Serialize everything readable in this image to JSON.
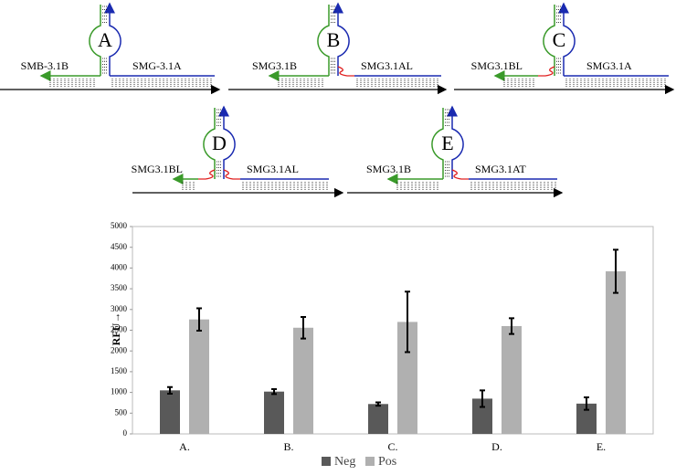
{
  "diagrams": [
    {
      "letter": "A",
      "left": "SMB-3.1B",
      "right": "SMG-3.1A"
    },
    {
      "letter": "B",
      "left": "SMG3.1B",
      "right": "SMG3.1AL"
    },
    {
      "letter": "C",
      "left": "SMG3.1BL",
      "right": "SMG3.1A"
    },
    {
      "letter": "D",
      "left": "SMG3.1BL",
      "right": "SMG3.1AL"
    },
    {
      "letter": "E",
      "left": "SMG3.1B",
      "right": "SMG3.1AT"
    }
  ],
  "chart_data": {
    "type": "bar",
    "y_label": "RFU→",
    "categories": [
      "A.",
      "B.",
      "C.",
      "D.",
      "E."
    ],
    "series": [
      {
        "name": "Neg",
        "color": "#595959",
        "values": [
          1050,
          1020,
          720,
          850,
          730
        ],
        "errors": [
          80,
          60,
          40,
          200,
          150
        ]
      },
      {
        "name": "Pos",
        "color": "#b0b0b0",
        "values": [
          2760,
          2560,
          2700,
          2600,
          3920
        ],
        "errors": [
          270,
          260,
          730,
          190,
          520
        ]
      }
    ],
    "ylim": [
      0,
      5000
    ],
    "yticks": [
      0,
      500,
      1000,
      1500,
      2000,
      2500,
      3000,
      3500,
      4000,
      4500,
      5000
    ],
    "grid": false,
    "legend": "bottom"
  }
}
